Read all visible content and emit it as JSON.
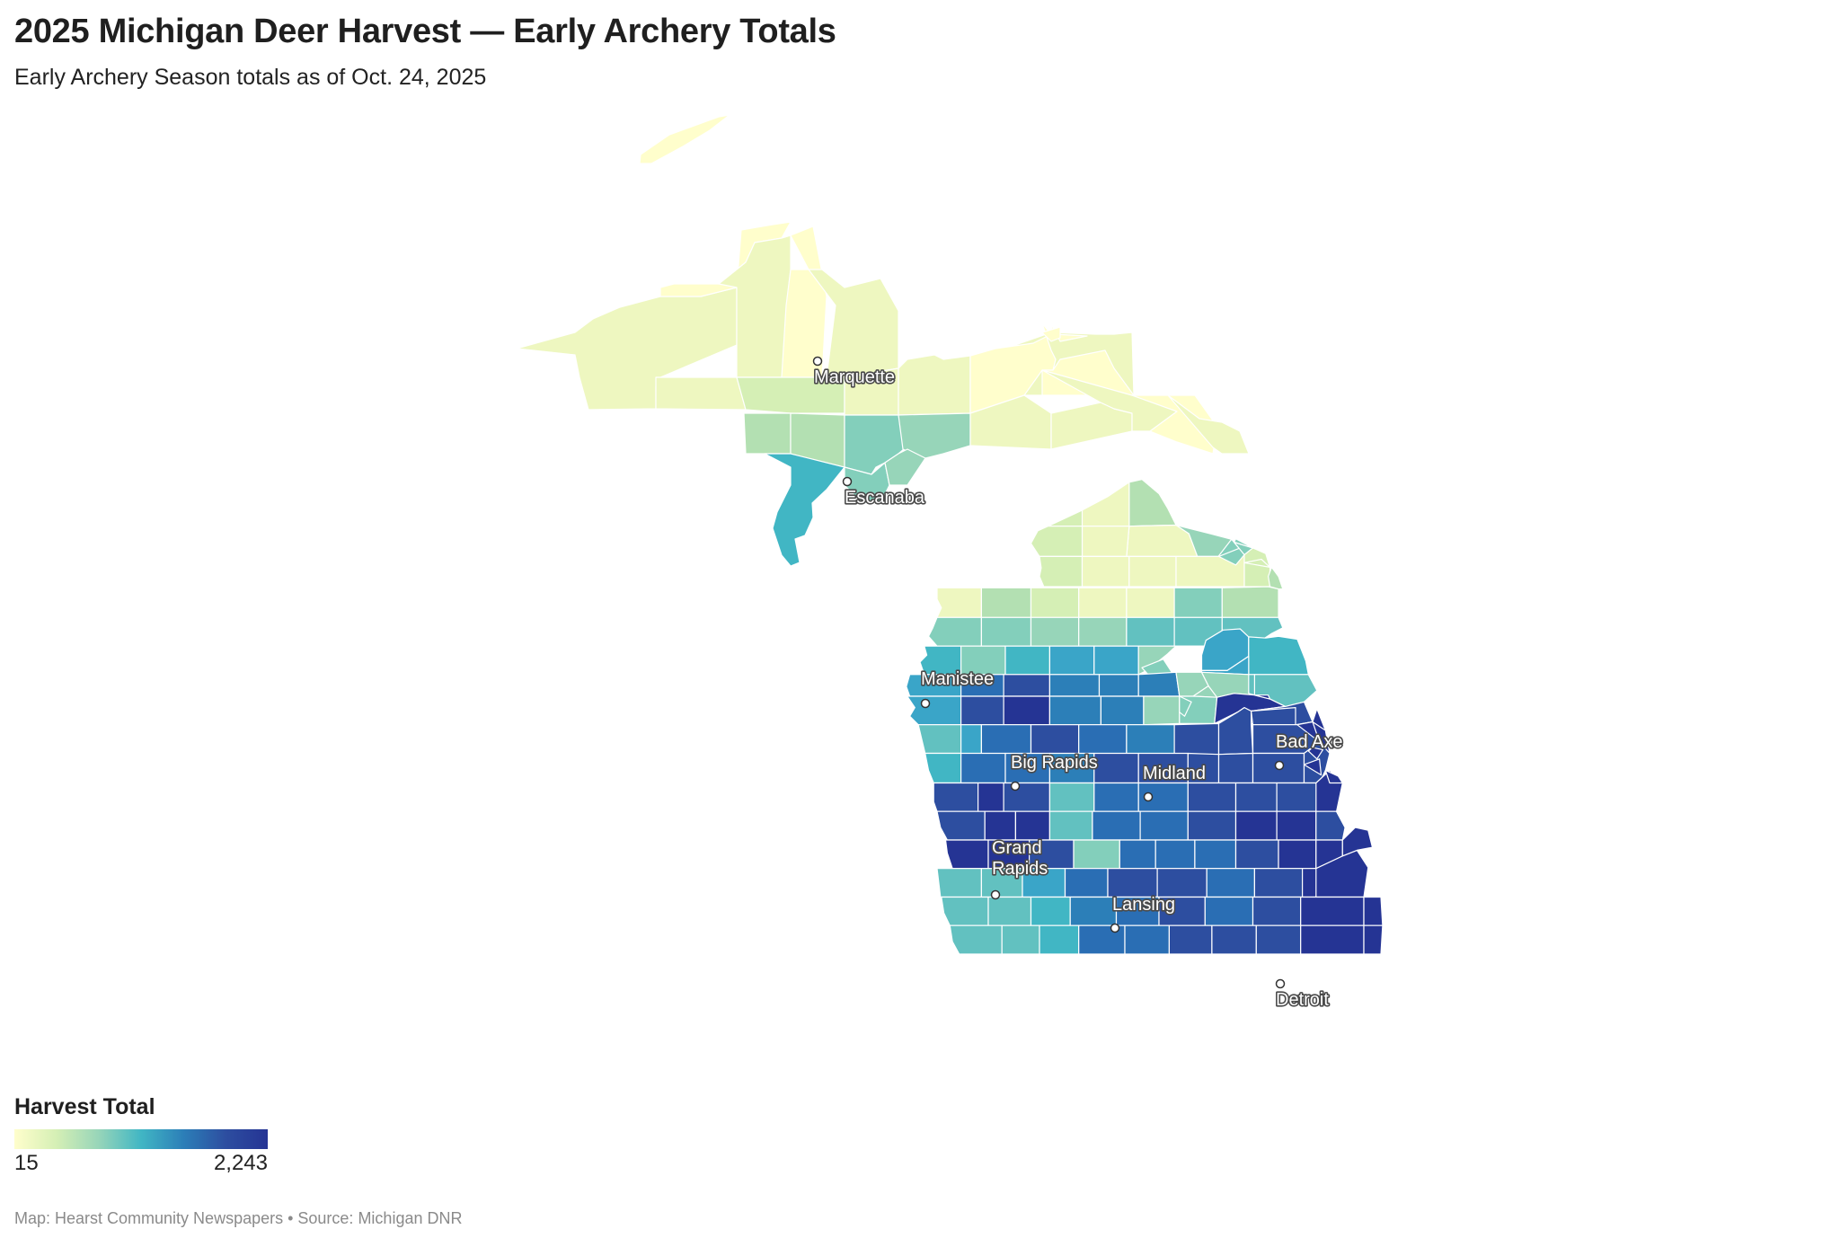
{
  "header": {
    "title": "2025 Michigan Deer Harvest — Early Archery Totals",
    "subtitle": "Early Archery Season totals as of Oct. 24, 2025"
  },
  "legend": {
    "title": "Harvest Total",
    "min_label": "15",
    "max_label": "2,243",
    "min": 15,
    "max": 2243,
    "colors": [
      "#fffecc",
      "#d5efb5",
      "#97d5b9",
      "#41b6c4",
      "#2c7fb8",
      "#2d4ea0",
      "#253494"
    ]
  },
  "cities": [
    {
      "name": "Marquette",
      "label": "Marquette"
    },
    {
      "name": "Escanaba",
      "label": "Escanaba"
    },
    {
      "name": "Manistee",
      "label": "Manistee"
    },
    {
      "name": "Big Rapids",
      "label": "Big Rapids"
    },
    {
      "name": "Midland",
      "label": "Midland"
    },
    {
      "name": "Bad Axe",
      "label": "Bad Axe"
    },
    {
      "name": "Grand Rapids",
      "label": "Grand\nRapids"
    },
    {
      "name": "Lansing",
      "label": "Lansing"
    },
    {
      "name": "Detroit",
      "label": "Detroit"
    }
  ],
  "credit": "Map: Hearst Community Newspapers • Source: Michigan DNR"
}
